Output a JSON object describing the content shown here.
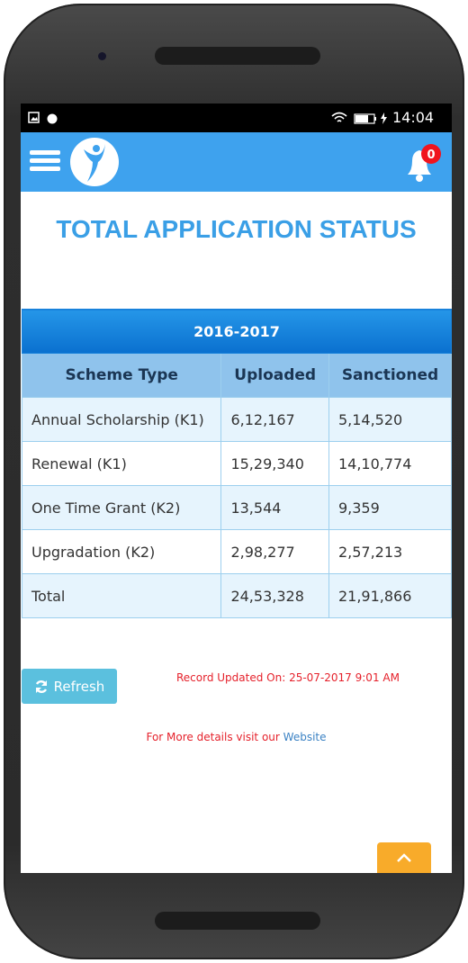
{
  "status_bar": {
    "time": "14:04"
  },
  "header": {
    "notification_count": 0
  },
  "title": "TOTAL APPLICATION STATUS",
  "table": {
    "caption": "2016-2017",
    "columns": [
      "Scheme Type",
      "Uploaded",
      "Sanctioned"
    ],
    "rows": [
      [
        "Annual Scholarship (K1)",
        "6,12,167",
        "5,14,520"
      ],
      [
        "Renewal (K1)",
        "15,29,340",
        "14,10,774"
      ],
      [
        "One Time Grant (K2)",
        "13,544",
        "9,359"
      ],
      [
        "Upgradation (K2)",
        "2,98,277",
        "2,57,213"
      ],
      [
        "Total",
        "24,53,328",
        "21,91,866"
      ]
    ]
  },
  "refresh_button": "Refresh",
  "record_updated": "Record Updated On: 25-07-2017 9:01 AM",
  "footer": {
    "text": "For More details visit our",
    "link": "Website"
  }
}
